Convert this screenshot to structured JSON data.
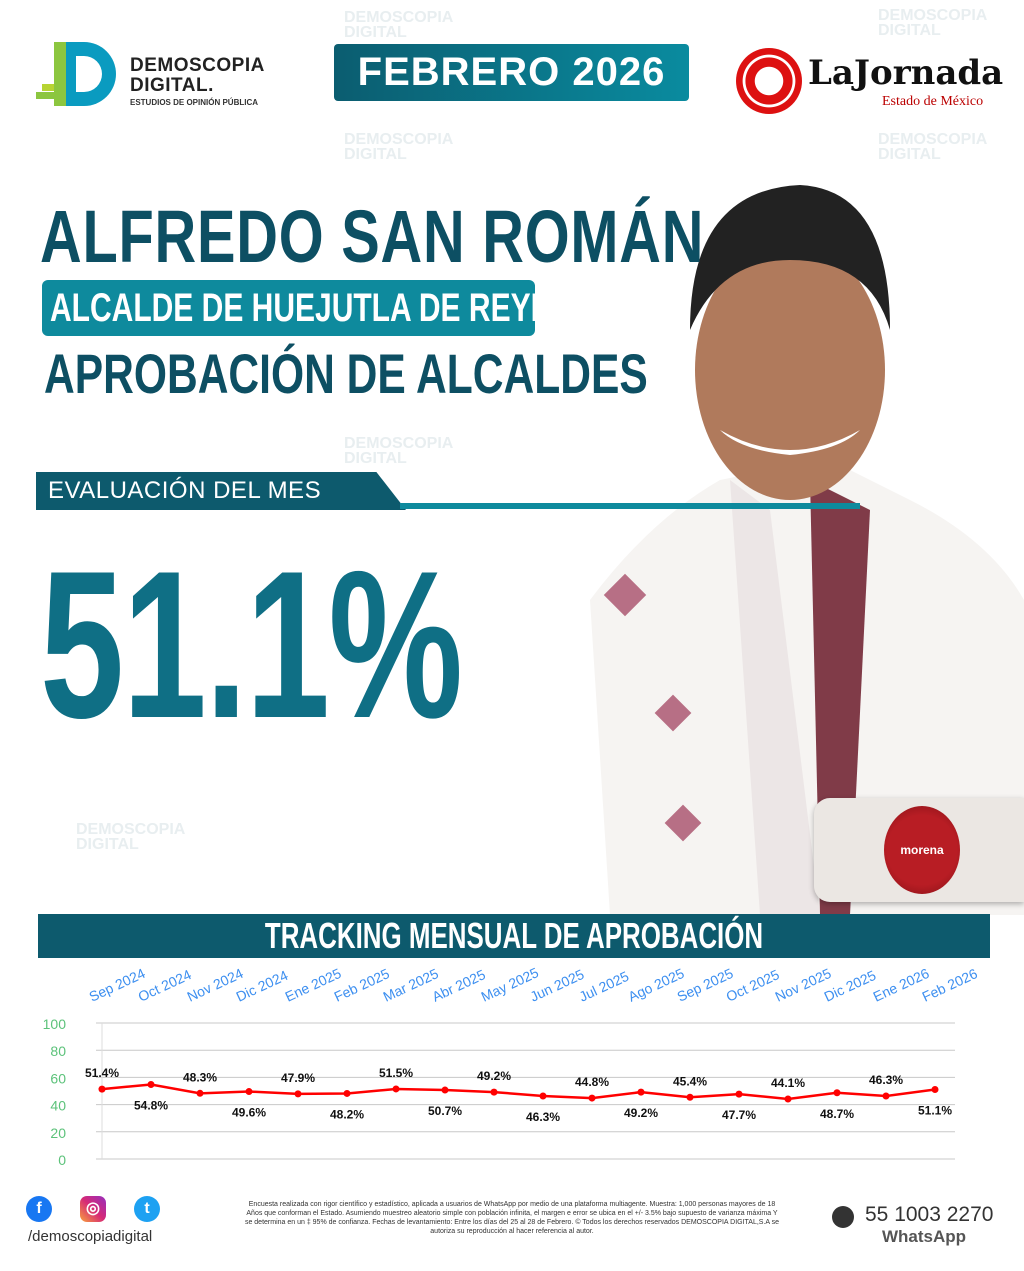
{
  "logo": {
    "line1": "DEMOSCOPIA",
    "line2": "DIGITAL.",
    "tagline": "ESTUDIOS DE OPINIÓN PÚBLICA"
  },
  "header": {
    "month": "FEBRERO 2026"
  },
  "partner": {
    "name": "LaJornada",
    "subtitle": "Estado de México"
  },
  "subject": {
    "name": "ALFREDO SAN ROMÁN",
    "role": "ALCALDE DE HUEJUTLA DE REYES",
    "section": "APROBACIÓN DE ALCALDES"
  },
  "evaluation": {
    "label": "EVALUACIÓN DEL MES",
    "value": "51.1%"
  },
  "party": {
    "name": "morena",
    "color": "#b81d24"
  },
  "colors": {
    "primary": "#0d5a6d",
    "accent": "#0e8a9d",
    "line": "#ff0000",
    "x_tick": "#3d8ff0",
    "y_tick": "#5cc27a"
  },
  "tracking": {
    "title": "TRACKING MENSUAL DE APROBACIÓN"
  },
  "chart_data": {
    "type": "line",
    "categories": [
      "Sep 2024",
      "Oct 2024",
      "Nov 2024",
      "Dic 2024",
      "Ene 2025",
      "Feb 2025",
      "Mar 2025",
      "Abr 2025",
      "May 2025",
      "Jun 2025",
      "Jul 2025",
      "Ago 2025",
      "Sep 2025",
      "Oct 2025",
      "Nov 2025",
      "Dic 2025",
      "Ene 2026",
      "Feb 2026"
    ],
    "values": [
      51.4,
      54.8,
      48.3,
      49.6,
      47.9,
      48.2,
      51.5,
      50.7,
      49.2,
      46.3,
      44.8,
      49.2,
      45.4,
      47.7,
      44.1,
      48.7,
      46.3,
      51.1
    ],
    "data_labels": [
      "51.4%",
      "54.8%",
      "48.3%",
      "49.6%",
      "47.9%",
      "48.2%",
      "51.5%",
      "50.7%",
      "49.2%",
      "46.3%",
      "44.8%",
      "49.2%",
      "45.4%",
      "47.7%",
      "44.1%",
      "48.7%",
      "46.3%",
      "51.1%"
    ],
    "yticks": [
      "0",
      "20",
      "40",
      "60",
      "80",
      "100"
    ],
    "ylim": [
      0,
      100
    ],
    "grid": true,
    "x_axis_position": "top"
  },
  "footer": {
    "handle": "/demoscopiadigital",
    "disclaimer": "Encuesta realizada con rigor científico y estadístico, aplicada a usuarios de WhatsApp por medio de una plataforma multiagente. Muestra: 1,000 personas mayores de 18 Años que conforman el Estado. Asumiendo muestreo aleatorio simple con población infinita, el margen e error se ubica en el +/- 3.5% bajo supuesto de varianza máxima Y se determina en un ‡ 95% de confianza. Fechas de levantamiento: Entre los días del 25 al 28 de Febrero. © Todos los derechos reservados DEMOSCOPIA DIGITAL,S.A se autoriza su reproducción al hacer referencia al autor.",
    "phone": "55 1003 2270",
    "whatsapp_label": "WhatsApp",
    "social": [
      "facebook-icon",
      "instagram-icon",
      "twitter-icon"
    ]
  }
}
